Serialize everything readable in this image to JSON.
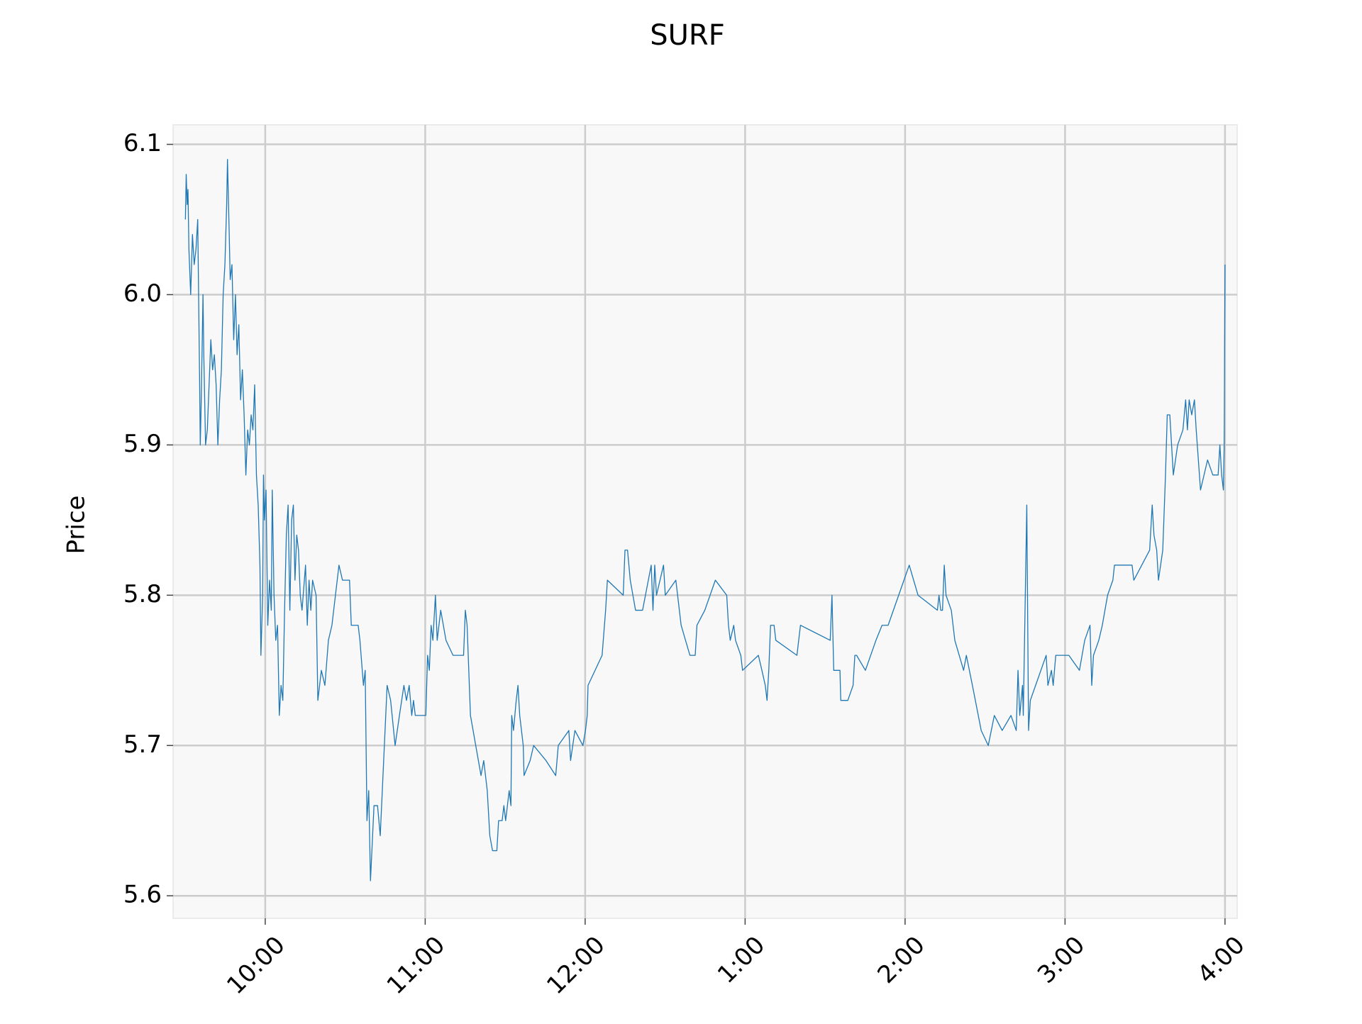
{
  "chart_data": {
    "type": "line",
    "title": "SURF",
    "ylabel": "Price",
    "color": "#1f77b4",
    "grid": true,
    "xlim": [
      9.424,
      16.076
    ],
    "xticks": [
      {
        "value": 10,
        "label": "10:00"
      },
      {
        "value": 11,
        "label": "11:00"
      },
      {
        "value": 12,
        "label": "12:00"
      },
      {
        "value": 13,
        "label": "1:00"
      },
      {
        "value": 14,
        "label": "2:00"
      },
      {
        "value": 15,
        "label": "3:00"
      },
      {
        "value": 16,
        "label": "4:00"
      }
    ],
    "ylim": [
      5.585,
      6.113
    ],
    "yticks": [
      5.6,
      5.7,
      5.8,
      5.9,
      {
        "value": 6,
        "label": "6.0"
      },
      6.1
    ],
    "x": [
      9.501,
      9.506,
      9.512,
      9.517,
      9.523,
      9.534,
      9.545,
      9.556,
      9.567,
      9.578,
      9.589,
      9.594,
      9.6,
      9.611,
      9.616,
      9.627,
      9.638,
      9.649,
      9.66,
      9.671,
      9.682,
      9.693,
      9.704,
      9.715,
      9.726,
      9.737,
      9.748,
      9.759,
      9.764,
      9.775,
      9.781,
      9.792,
      9.803,
      9.814,
      9.824,
      9.835,
      9.846,
      9.857,
      9.868,
      9.879,
      9.89,
      9.901,
      9.912,
      9.923,
      9.934,
      9.945,
      9.956,
      9.967,
      9.973,
      9.984,
      9.989,
      9.995,
      10.005,
      10.016,
      10.027,
      10.038,
      10.044,
      10.055,
      10.066,
      10.077,
      10.088,
      10.099,
      10.11,
      10.121,
      10.132,
      10.143,
      10.154,
      10.165,
      10.176,
      10.186,
      10.197,
      10.208,
      10.219,
      10.23,
      10.252,
      10.263,
      10.274,
      10.285,
      10.296,
      10.318,
      10.329,
      10.351,
      10.373,
      10.395,
      10.417,
      10.439,
      10.461,
      10.483,
      10.527,
      10.538,
      10.581,
      10.592,
      10.614,
      10.625,
      10.636,
      10.647,
      10.658,
      10.68,
      10.702,
      10.719,
      10.762,
      10.784,
      10.812,
      10.839,
      10.867,
      10.883,
      10.9,
      10.916,
      10.927,
      10.938,
      11.004,
      11.015,
      11.026,
      11.037,
      11.048,
      11.064,
      11.075,
      11.097,
      11.13,
      11.174,
      11.24,
      11.251,
      11.262,
      11.283,
      11.316,
      11.349,
      11.366,
      11.388,
      11.404,
      11.421,
      11.448,
      11.459,
      11.481,
      11.492,
      11.503,
      11.525,
      11.536,
      11.541,
      11.552,
      11.569,
      11.58,
      11.591,
      11.613,
      11.618,
      11.656,
      11.678,
      11.755,
      11.816,
      11.832,
      11.898,
      11.909,
      11.936,
      11.986,
      12.002,
      12.013,
      12.018,
      12.106,
      12.128,
      12.139,
      12.238,
      12.249,
      12.265,
      12.282,
      12.315,
      12.359,
      12.413,
      12.424,
      12.435,
      12.446,
      12.49,
      12.501,
      12.567,
      12.6,
      12.655,
      12.688,
      12.699,
      12.748,
      12.814,
      12.885,
      12.896,
      12.907,
      12.929,
      12.94,
      12.973,
      12.984,
      13.083,
      13.105,
      13.126,
      13.137,
      13.148,
      13.159,
      13.181,
      13.192,
      13.324,
      13.346,
      13.532,
      13.543,
      13.554,
      13.593,
      13.598,
      13.642,
      13.675,
      13.686,
      13.697,
      13.752,
      13.818,
      13.856,
      13.894,
      14.026,
      14.081,
      14.202,
      14.212,
      14.223,
      14.234,
      14.245,
      14.256,
      14.289,
      14.311,
      14.366,
      14.383,
      14.421,
      14.476,
      14.52,
      14.558,
      14.607,
      14.662,
      14.695,
      14.706,
      14.717,
      14.734,
      14.739,
      14.761,
      14.772,
      14.783,
      14.816,
      14.849,
      14.882,
      14.893,
      14.915,
      14.926,
      14.942,
      15.024,
      15.09,
      15.123,
      15.156,
      15.167,
      15.178,
      15.211,
      15.233,
      15.266,
      15.299,
      15.309,
      15.419,
      15.43,
      15.529,
      15.545,
      15.556,
      15.573,
      15.584,
      15.611,
      15.628,
      15.639,
      15.655,
      15.677,
      15.704,
      15.737,
      15.754,
      15.765,
      15.776,
      15.792,
      15.809,
      15.82,
      15.847,
      15.891,
      15.924,
      15.957,
      15.968,
      15.979,
      15.99,
      15.995,
      16.0
    ],
    "values": [
      6.05,
      6.08,
      6.06,
      6.07,
      6.03,
      6.0,
      6.04,
      6.02,
      6.03,
      6.05,
      5.95,
      5.9,
      5.93,
      6.0,
      5.96,
      5.9,
      5.91,
      5.94,
      5.97,
      5.95,
      5.96,
      5.94,
      5.9,
      5.93,
      5.95,
      6.0,
      6.02,
      6.06,
      6.09,
      6.04,
      6.01,
      6.02,
      5.97,
      6.0,
      5.96,
      5.98,
      5.93,
      5.95,
      5.92,
      5.88,
      5.91,
      5.9,
      5.92,
      5.91,
      5.94,
      5.88,
      5.86,
      5.82,
      5.76,
      5.8,
      5.88,
      5.85,
      5.87,
      5.78,
      5.81,
      5.79,
      5.87,
      5.8,
      5.77,
      5.78,
      5.72,
      5.74,
      5.73,
      5.79,
      5.84,
      5.86,
      5.79,
      5.85,
      5.86,
      5.81,
      5.84,
      5.83,
      5.8,
      5.79,
      5.82,
      5.78,
      5.81,
      5.79,
      5.81,
      5.8,
      5.73,
      5.75,
      5.74,
      5.77,
      5.78,
      5.8,
      5.82,
      5.81,
      5.81,
      5.78,
      5.78,
      5.77,
      5.74,
      5.75,
      5.65,
      5.67,
      5.61,
      5.66,
      5.66,
      5.64,
      5.74,
      5.73,
      5.7,
      5.72,
      5.74,
      5.73,
      5.74,
      5.72,
      5.73,
      5.72,
      5.72,
      5.76,
      5.75,
      5.78,
      5.77,
      5.8,
      5.77,
      5.79,
      5.77,
      5.76,
      5.76,
      5.79,
      5.78,
      5.72,
      5.7,
      5.68,
      5.69,
      5.67,
      5.64,
      5.63,
      5.63,
      5.65,
      5.65,
      5.66,
      5.65,
      5.67,
      5.66,
      5.72,
      5.71,
      5.73,
      5.74,
      5.72,
      5.7,
      5.68,
      5.69,
      5.7,
      5.69,
      5.68,
      5.7,
      5.71,
      5.69,
      5.71,
      5.7,
      5.71,
      5.72,
      5.74,
      5.76,
      5.79,
      5.81,
      5.8,
      5.83,
      5.83,
      5.81,
      5.79,
      5.79,
      5.82,
      5.79,
      5.82,
      5.8,
      5.82,
      5.8,
      5.81,
      5.78,
      5.76,
      5.76,
      5.78,
      5.79,
      5.81,
      5.8,
      5.78,
      5.77,
      5.78,
      5.77,
      5.76,
      5.75,
      5.76,
      5.75,
      5.74,
      5.73,
      5.75,
      5.78,
      5.78,
      5.77,
      5.76,
      5.78,
      5.77,
      5.8,
      5.75,
      5.75,
      5.73,
      5.73,
      5.74,
      5.76,
      5.76,
      5.75,
      5.77,
      5.78,
      5.78,
      5.82,
      5.8,
      5.79,
      5.8,
      5.79,
      5.79,
      5.82,
      5.8,
      5.79,
      5.77,
      5.75,
      5.76,
      5.74,
      5.71,
      5.7,
      5.72,
      5.71,
      5.72,
      5.71,
      5.75,
      5.72,
      5.74,
      5.72,
      5.86,
      5.71,
      5.73,
      5.74,
      5.75,
      5.76,
      5.74,
      5.75,
      5.74,
      5.76,
      5.76,
      5.75,
      5.77,
      5.78,
      5.74,
      5.76,
      5.77,
      5.78,
      5.8,
      5.81,
      5.82,
      5.82,
      5.81,
      5.83,
      5.86,
      5.84,
      5.83,
      5.81,
      5.83,
      5.88,
      5.92,
      5.92,
      5.88,
      5.9,
      5.91,
      5.93,
      5.91,
      5.93,
      5.92,
      5.93,
      5.91,
      5.87,
      5.89,
      5.88,
      5.88,
      5.9,
      5.88,
      5.87,
      5.9,
      6.02
    ]
  }
}
